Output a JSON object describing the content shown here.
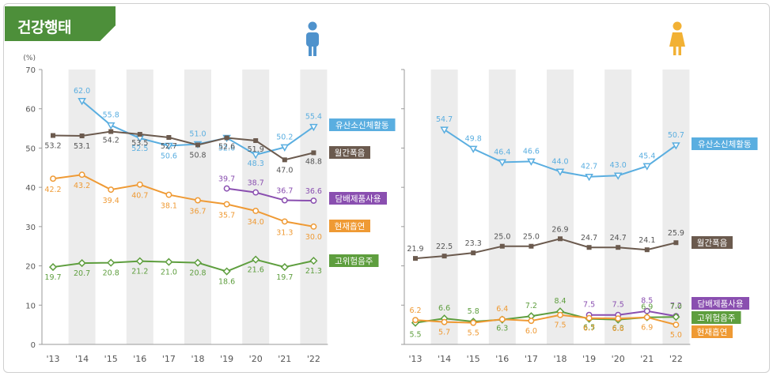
{
  "header": {
    "title": "건강행태"
  },
  "axis": {
    "unit_label": "(%)",
    "y_ticks": [
      0,
      10,
      20,
      30,
      40,
      50,
      60,
      70
    ],
    "years": [
      "'13",
      "'14",
      "'15",
      "'16",
      "'17",
      "'18",
      "'19",
      "'20",
      "'21",
      "'22"
    ]
  },
  "colors": {
    "activity": "#5aaee0",
    "drinking": "#6b5a4e",
    "tobacco_products": "#8a4fb0",
    "smoking": "#ef9a34",
    "high_risk_drinking": "#5e9e3e",
    "male_icon": "#4f92cc",
    "female_icon": "#f2b134",
    "stripe": "#ececec"
  },
  "chart_data": [
    {
      "type": "line",
      "panel": "male",
      "icon": "male-figure-icon",
      "x": [
        "'13",
        "'14",
        "'15",
        "'16",
        "'17",
        "'18",
        "'19",
        "'20",
        "'21",
        "'22"
      ],
      "ylim": [
        0,
        70
      ],
      "ylabel": "(%)",
      "series": [
        {
          "key": "activity",
          "name": "유산소신체활동",
          "marker": "triangle-down",
          "values": [
            null,
            62.0,
            55.8,
            52.5,
            50.6,
            51.0,
            52.6,
            48.3,
            50.2,
            55.4
          ],
          "labels": [
            "",
            "62.0",
            "55.8",
            "52.5",
            "50.6",
            "51.0",
            "52.6",
            "48.3",
            "50.2",
            "55.4"
          ]
        },
        {
          "key": "drinking",
          "name": "월간폭음",
          "marker": "square",
          "values": [
            53.2,
            53.1,
            54.2,
            53.5,
            52.7,
            50.8,
            52.6,
            51.9,
            47.0,
            48.8
          ],
          "labels": [
            "53.2",
            "53.1",
            "54.2",
            "53.5",
            "52.7",
            "50.8",
            "52.6",
            "51.9",
            "47.0",
            "48.8"
          ]
        },
        {
          "key": "tobacco_products",
          "name": "담배제품사용",
          "marker": "circle",
          "values": [
            null,
            null,
            null,
            null,
            null,
            null,
            39.7,
            38.7,
            36.7,
            36.6
          ],
          "labels": [
            "",
            "",
            "",
            "",
            "",
            "",
            "39.7",
            "38.7",
            "36.7",
            "36.6"
          ]
        },
        {
          "key": "smoking",
          "name": "현재흡연",
          "marker": "circle",
          "values": [
            42.2,
            43.2,
            39.4,
            40.7,
            38.1,
            36.7,
            35.7,
            34.0,
            31.3,
            30.0
          ],
          "labels": [
            "42.2",
            "43.2",
            "39.4",
            "40.7",
            "38.1",
            "36.7",
            "35.7",
            "34.0",
            "31.3",
            "30.0"
          ]
        },
        {
          "key": "high_risk_drinking",
          "name": "고위험음주",
          "marker": "diamond",
          "values": [
            19.7,
            20.7,
            20.8,
            21.2,
            21.0,
            20.8,
            18.6,
            21.6,
            19.7,
            21.3
          ],
          "labels": [
            "19.7",
            "20.7",
            "20.8",
            "21.2",
            "21.0",
            "20.8",
            "18.6",
            "21.6",
            "19.7",
            "21.3"
          ]
        }
      ]
    },
    {
      "type": "line",
      "panel": "female",
      "icon": "female-figure-icon",
      "x": [
        "'13",
        "'14",
        "'15",
        "'16",
        "'17",
        "'18",
        "'19",
        "'20",
        "'21",
        "'22"
      ],
      "ylim": [
        0,
        70
      ],
      "series": [
        {
          "key": "activity",
          "name": "유산소신체활동",
          "marker": "triangle-down",
          "values": [
            null,
            54.7,
            49.8,
            46.4,
            46.6,
            44.0,
            42.7,
            43.0,
            45.4,
            50.7
          ],
          "labels": [
            "",
            "54.7",
            "49.8",
            "46.4",
            "46.6",
            "44.0",
            "42.7",
            "43.0",
            "45.4",
            "50.7"
          ]
        },
        {
          "key": "drinking",
          "name": "월간폭음",
          "marker": "square",
          "values": [
            21.9,
            22.5,
            23.3,
            25.0,
            25.0,
            26.9,
            24.7,
            24.7,
            24.1,
            25.9
          ],
          "labels": [
            "21.9",
            "22.5",
            "23.3",
            "25.0",
            "25.0",
            "26.9",
            "24.7",
            "24.7",
            "24.1",
            "25.9"
          ]
        },
        {
          "key": "tobacco_products",
          "name": "담배제품사용",
          "marker": "circle",
          "values": [
            null,
            null,
            null,
            null,
            null,
            null,
            7.5,
            7.5,
            8.5,
            7.2
          ],
          "labels": [
            "",
            "",
            "",
            "",
            "",
            "",
            "7.5",
            "7.5",
            "8.5",
            "7.2"
          ]
        },
        {
          "key": "high_risk_drinking",
          "name": "고위험음주",
          "marker": "diamond",
          "values": [
            5.5,
            6.6,
            5.8,
            6.3,
            7.2,
            8.4,
            6.5,
            6.3,
            6.9,
            7.0
          ],
          "labels": [
            "5.5",
            "6.6",
            "5.8",
            "6.3",
            "7.2",
            "8.4",
            "6.5",
            "6.3",
            "6.9",
            "7.0"
          ]
        },
        {
          "key": "smoking",
          "name": "현재흡연",
          "marker": "circle",
          "values": [
            6.2,
            5.7,
            5.5,
            6.4,
            6.0,
            7.5,
            6.7,
            6.6,
            6.9,
            5.0
          ],
          "labels": [
            "6.2",
            "5.7",
            "5.5",
            "6.4",
            "6.0",
            "7.5",
            "6.7",
            "6.6",
            "6.9",
            "5.0"
          ]
        }
      ]
    }
  ]
}
